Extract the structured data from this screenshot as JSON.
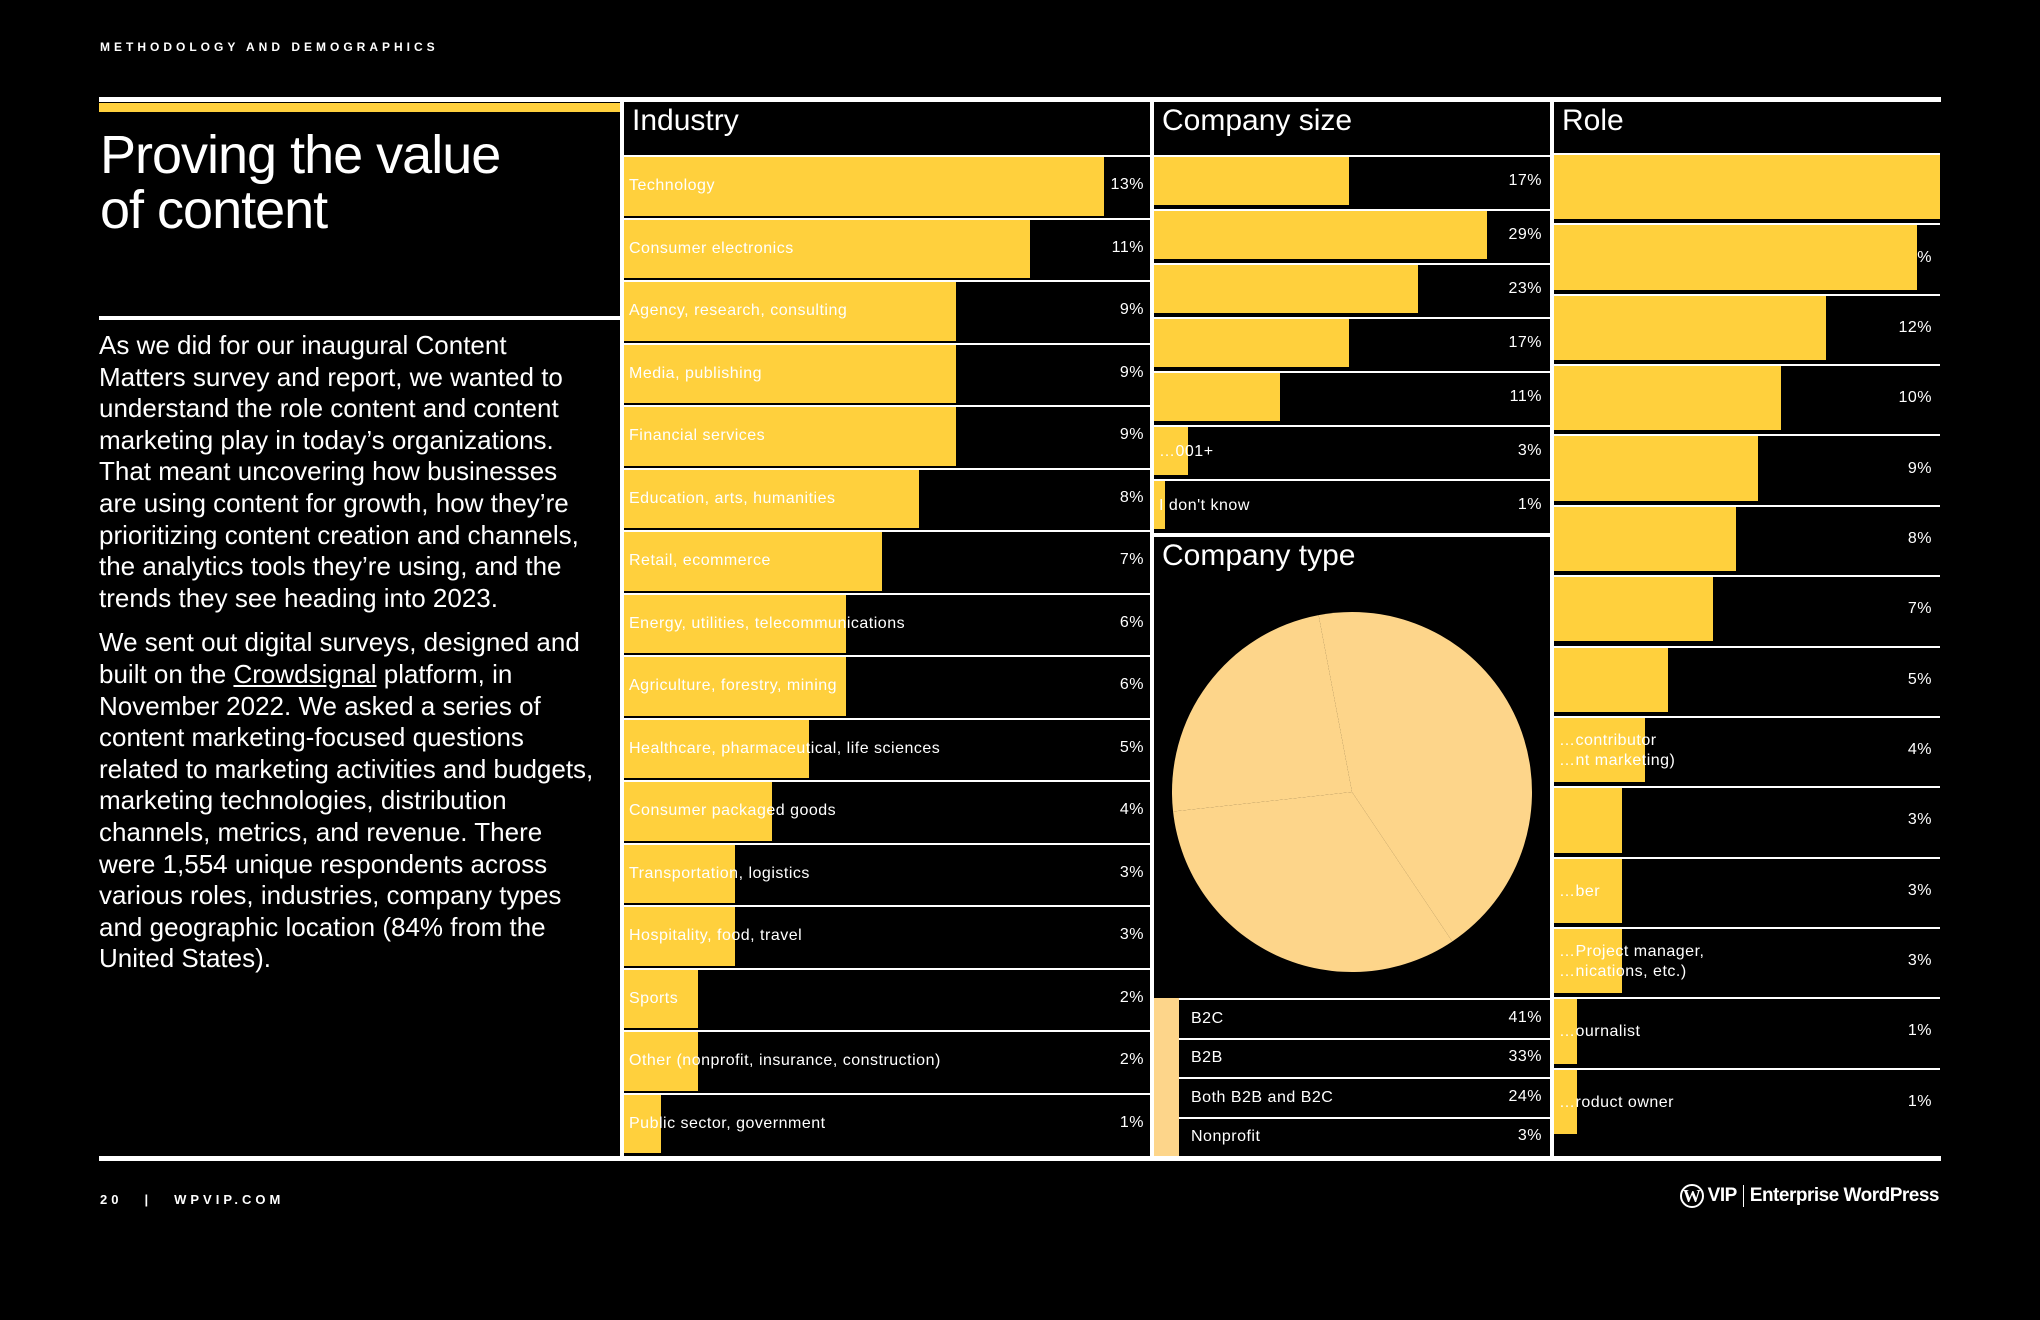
{
  "page": {
    "eyebrow": "METHODOLOGY AND DEMOGRAPHICS",
    "title_line1": "Proving the value",
    "title_line2": "of content",
    "accent_color": "#ffd03d",
    "pie_color": "#fdd58a",
    "paragraph1": "As we did for our inaugural Content Matters survey and report, we wanted to understand the role content and content marketing play in today’s organizations. That meant uncovering how businesses are using content for growth, how they’re prioritizing content creation and channels, the analytics tools they’re using, and the trends they see heading into 2023.",
    "paragraph2_before_link": "We sent out digital surveys, designed and built on the ",
    "paragraph2_link": "Crowdsignal",
    "paragraph2_after_link": " platform, in November 2022. We asked a series of content marketing-focused questions related to marketing activities and budgets, marketing technologies, distribution channels, metrics, and revenue. There were 1,554 unique respondents across various roles, industries, company types and geographic location (84% from the United States).",
    "footer_page": "20",
    "footer_sep": "|",
    "footer_site": "WPVIP.COM",
    "logo_mark": "W",
    "logo_vip": "VIP",
    "logo_text": "Enterprise WordPress"
  },
  "chart_data": [
    {
      "type": "bar",
      "orientation": "horizontal",
      "title": "Industry",
      "categories": [
        "Technology",
        "Consumer electronics",
        "Agency, research, consulting",
        "Media, publishing",
        "Financial services",
        "Education, arts, humanities",
        "Retail, ecommerce",
        "Energy, utilities, telecommunications",
        "Agriculture, forestry, mining",
        "Healthcare, pharmaceutical, life sciences",
        "Consumer packaged goods",
        "Transportation, logistics",
        "Hospitality, food, travel",
        "Sports",
        "Other (nonprofit, insurance, construction)",
        "Public sector, government"
      ],
      "values": [
        13,
        11,
        9,
        9,
        9,
        8,
        7,
        6,
        6,
        5,
        4,
        3,
        3,
        2,
        2,
        1
      ],
      "labels": [
        "13%",
        "11%",
        "9%",
        "9%",
        "9%",
        "8%",
        "7%",
        "6%",
        "6%",
        "5%",
        "4%",
        "3%",
        "3%",
        "2%",
        "2%",
        "1%"
      ],
      "xlim": [
        0,
        14.3
      ]
    },
    {
      "type": "bar",
      "orientation": "horizontal",
      "title": "Company size",
      "categories": [
        "",
        "",
        "",
        "",
        "",
        "…001+",
        "I don't know"
      ],
      "values": [
        17,
        29,
        23,
        17,
        11,
        3,
        1
      ],
      "labels": [
        "17%",
        "29%",
        "23%",
        "17%",
        "11%",
        "3%",
        "1%"
      ],
      "xlim": [
        0,
        34.5
      ]
    },
    {
      "type": "pie",
      "title": "Company type",
      "categories": [
        "B2C",
        "B2B",
        "Both B2B and B2C",
        "Nonprofit"
      ],
      "values": [
        41,
        33,
        24,
        3
      ],
      "labels": [
        "41%",
        "33%",
        "24%",
        "3%"
      ]
    },
    {
      "type": "bar",
      "orientation": "horizontal",
      "title": "Role",
      "categories": [
        "",
        "",
        "",
        "",
        "",
        "",
        "",
        "",
        "…contributor / …nt marketing)",
        "",
        "…ber",
        "…Project manager, / …nications, etc.)",
        "…ournalist",
        "…roduct owner"
      ],
      "values": [
        17,
        16,
        12,
        10,
        9,
        8,
        7,
        5,
        4,
        3,
        3,
        3,
        1,
        1
      ],
      "labels": [
        "",
        "%",
        "12%",
        "10%",
        "9%",
        "8%",
        "7%",
        "5%",
        "4%",
        "3%",
        "3%",
        "3%",
        "1%",
        "1%"
      ],
      "xlim": [
        0,
        17
      ]
    }
  ]
}
